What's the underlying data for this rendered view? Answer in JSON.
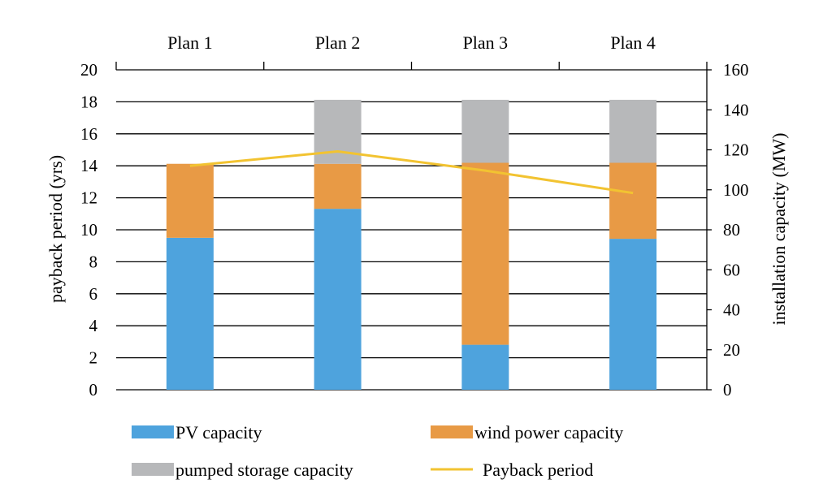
{
  "chart_data": {
    "type": "bar",
    "categories": [
      "Plan 1",
      "Plan 2",
      "Plan 3",
      "Plan 4"
    ],
    "series": [
      {
        "name": "PV capacity",
        "axis": "right",
        "color": "#4ea3dd",
        "values": [
          76,
          90.5,
          22.5,
          75.5
        ]
      },
      {
        "name": "wind power capacity",
        "axis": "right",
        "color": "#e89a45",
        "values": [
          37,
          22.5,
          91,
          38
        ]
      },
      {
        "name": "pumped storage capacity",
        "axis": "right",
        "color": "#b7b8ba",
        "values": [
          0,
          32,
          31.5,
          31.5
        ]
      },
      {
        "name": "Payback period",
        "axis": "left",
        "type": "line",
        "color": "#f2c331",
        "values": [
          14,
          14.9,
          13.7,
          12.3
        ]
      }
    ],
    "ylabel": "payback period (yrs)",
    "y2label": "installation capacity (MW)",
    "ylim": [
      0,
      20
    ],
    "y2lim": [
      0,
      160
    ],
    "yticks": [
      0,
      2,
      4,
      6,
      8,
      10,
      12,
      14,
      16,
      18,
      20
    ],
    "y2ticks": [
      0,
      20,
      40,
      60,
      80,
      100,
      120,
      140,
      160
    ],
    "grid": true,
    "legend_position": "bottom",
    "category_axis_position": "top"
  }
}
